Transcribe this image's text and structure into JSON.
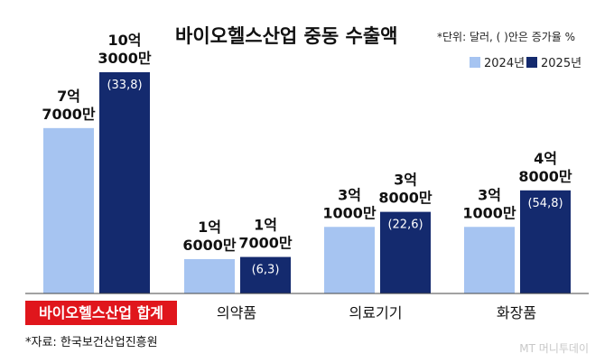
{
  "chart_data": {
    "type": "bar",
    "title": "바이오헬스산업 중동 수출액",
    "unit_note": "*단위: 달러, ( )안은 증가율 %",
    "categories": [
      "바이오헬스산업 합계",
      "의약품",
      "의료기기",
      "화장품"
    ],
    "highlight_category": "바이오헬스산업 합계",
    "series": [
      {
        "name": "2024년",
        "color": "#a6c4f1",
        "values": [
          77000,
          16000,
          31000,
          31000
        ],
        "labels": [
          [
            "7억",
            "7000만"
          ],
          [
            "1억",
            "6000만"
          ],
          [
            "3억",
            "1000만"
          ],
          [
            "3억",
            "1000만"
          ]
        ]
      },
      {
        "name": "2025년",
        "color": "#142a6e",
        "values": [
          103000,
          17000,
          38000,
          48000
        ],
        "labels": [
          [
            "10억",
            "3000만"
          ],
          [
            "1억",
            "7000만"
          ],
          [
            "3억",
            "8000만"
          ],
          [
            "4억",
            "8000만"
          ]
        ],
        "growth": [
          "(33,8)",
          "(6,3)",
          "(22,6)",
          "(54,8)"
        ]
      }
    ],
    "value_unit": "만 달러",
    "ylim": [
      0,
      103000
    ],
    "xlabel": "",
    "ylabel": "",
    "source": "*자료: 한국보건산업진흥원",
    "watermark": "MT 머니투데이",
    "colors": {
      "highlight_bg": "#e0161c",
      "axis": "#444444"
    }
  }
}
